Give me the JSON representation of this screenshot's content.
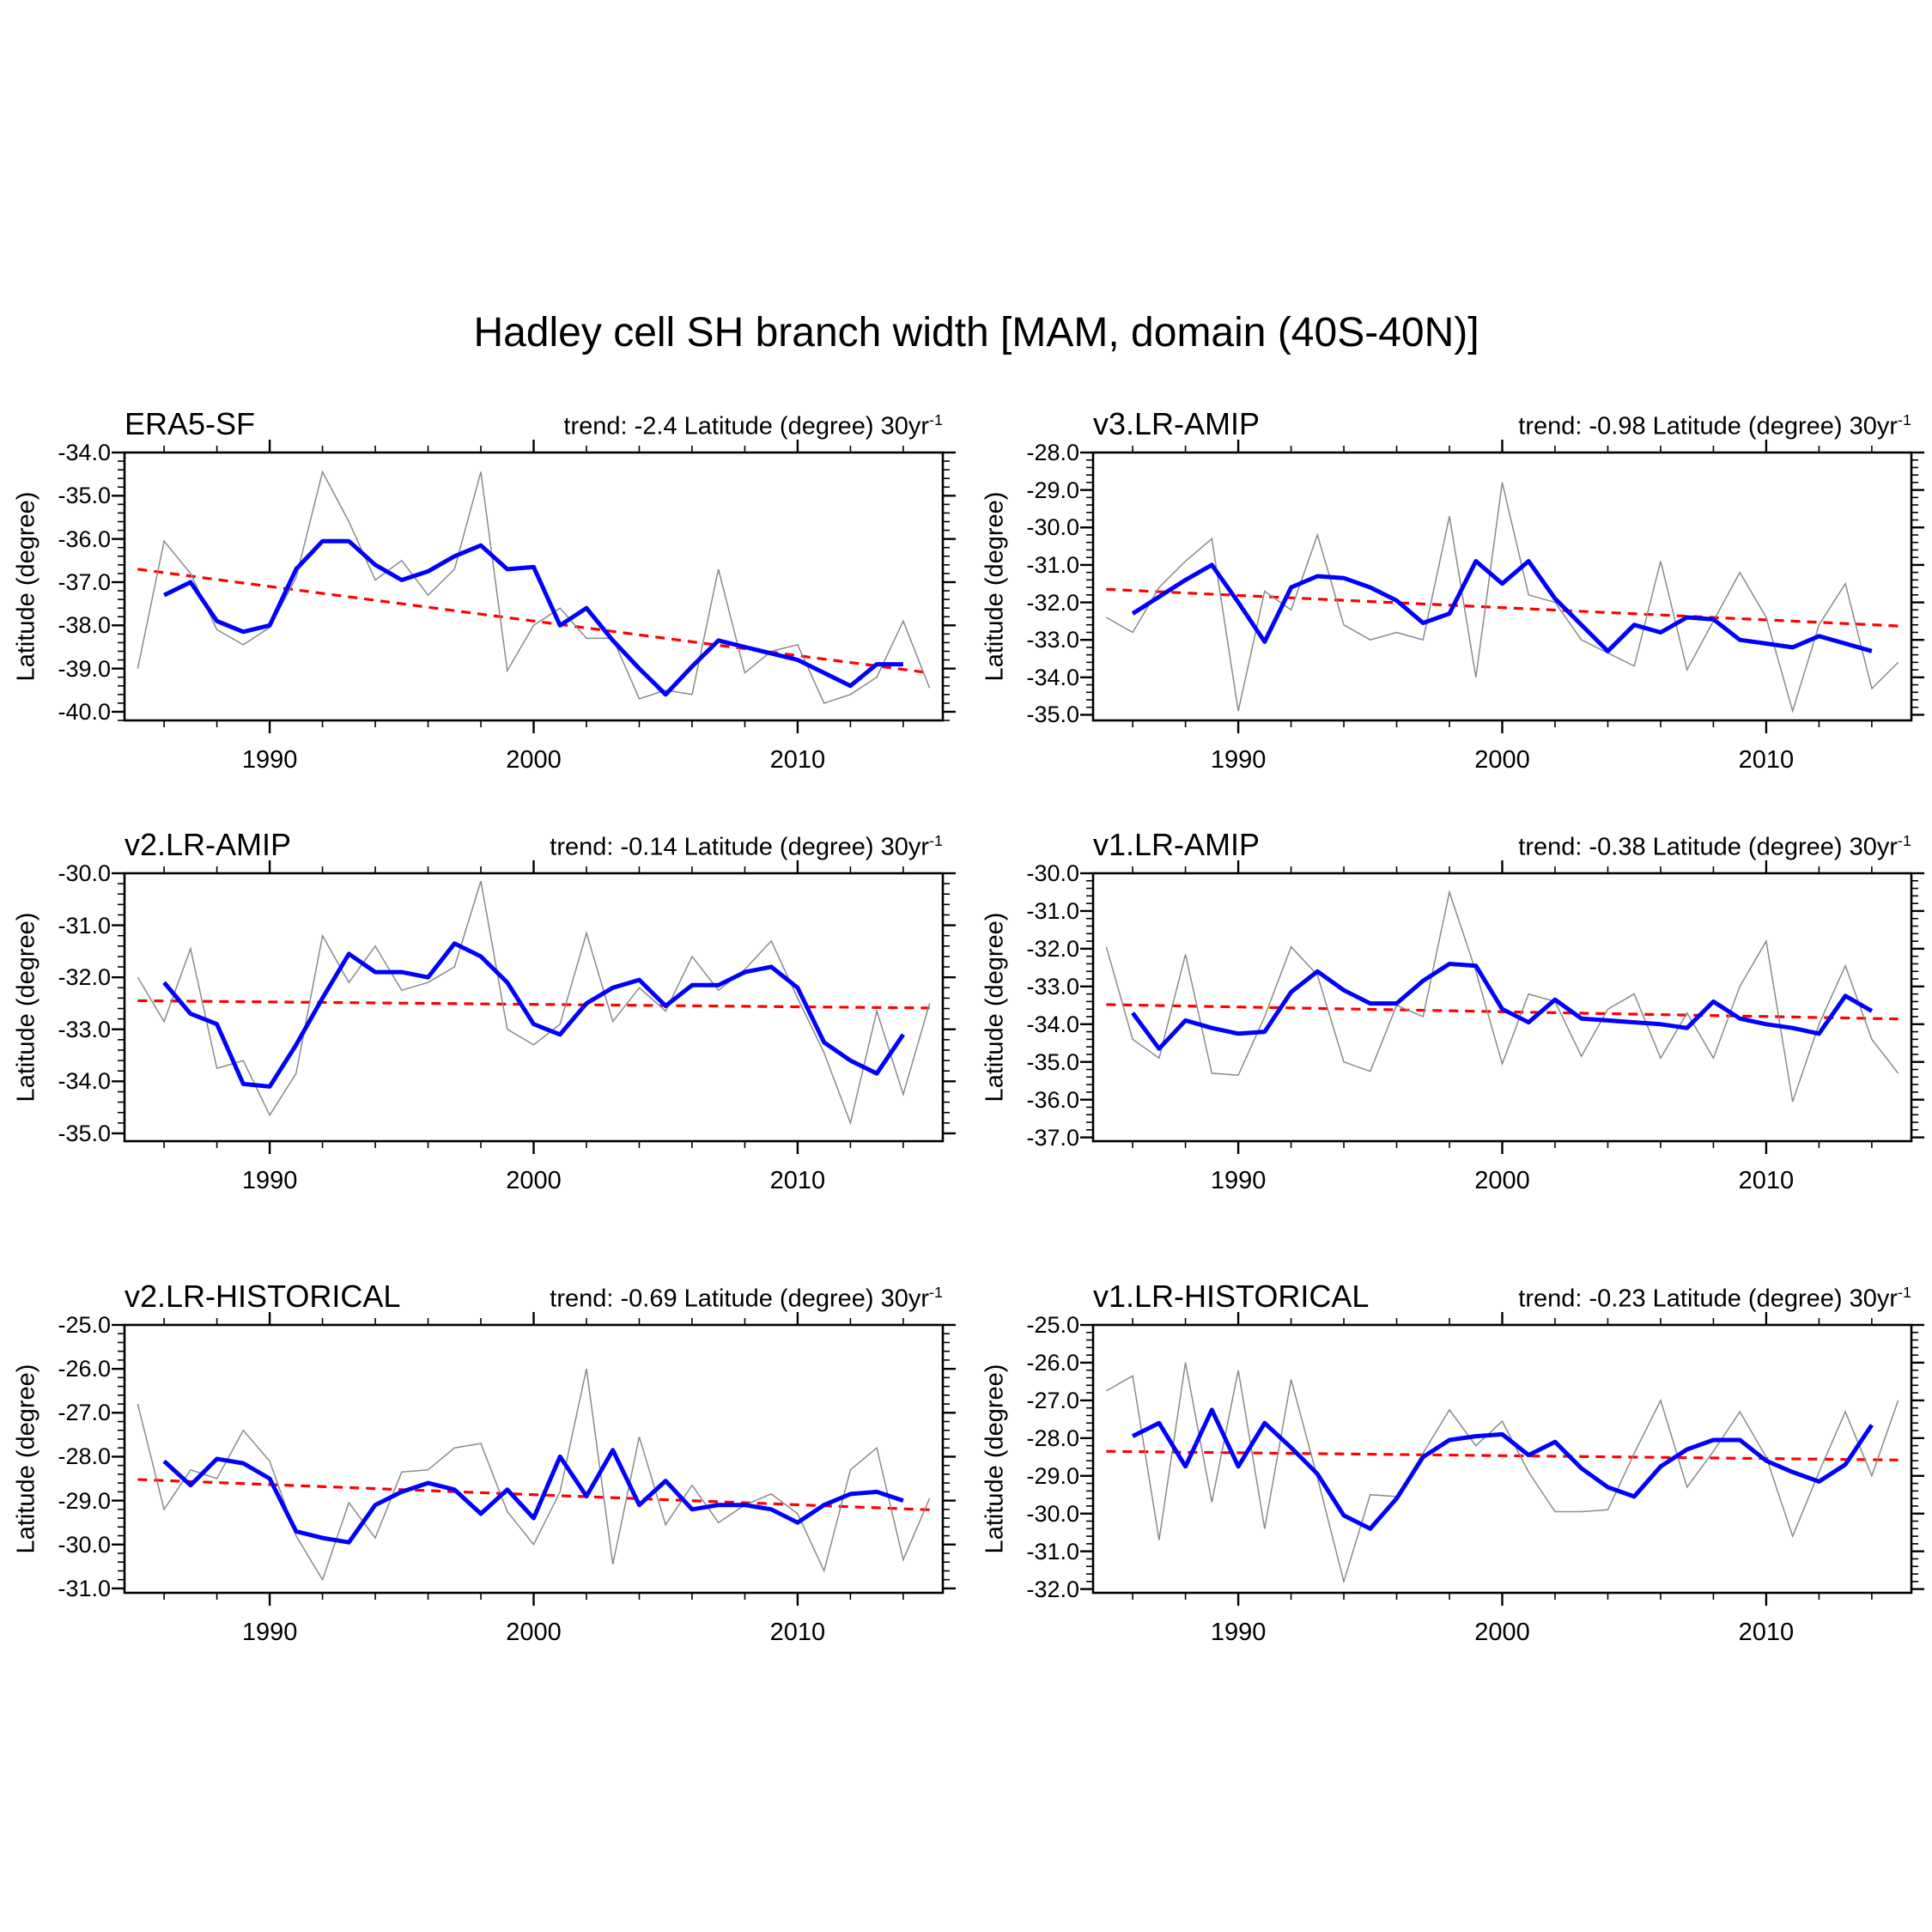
{
  "title": "Hadley cell SH branch width [MAM, domain (40S-40N)]",
  "ylabel": "Latitude (degree)",
  "colors": {
    "annual": "#8a8a8a",
    "smoothed": "#0000ff",
    "trend": "#ff0000",
    "frame": "#000000"
  },
  "layout": {
    "col_frame_x": [
      145,
      1273
    ],
    "row_frame_y": [
      527,
      1017,
      1543
    ],
    "frame_w": 953,
    "frame_h": 312
  },
  "x_axis": {
    "range": [
      1984.5,
      2015.5
    ],
    "major_ticks": [
      1990,
      2000,
      2010
    ],
    "minor_step_years": 2,
    "grid": false,
    "legend": "none"
  },
  "years_annual_start": 1985,
  "years_annual_end": 2015,
  "years_smoothed_start": 1986,
  "years_smoothed_end": 2014,
  "chart_data": [
    {
      "type": "line",
      "title": "ERA5-SF",
      "trend_text": "trend: -2.4 Latitude (degree) 30yr",
      "trend_sup": "-1",
      "ylabel": "Latitude (degree)",
      "ylim": [
        -34.0,
        -40.2
      ],
      "ytick_major_step": 1.0,
      "ytick_minor_step": 0.2,
      "ytick_labels": [
        -34.0,
        -35.0,
        -36.0,
        -37.0,
        -38.0,
        -39.0,
        -40.0
      ],
      "annual": [
        -39.0,
        -36.05,
        -36.8,
        -38.1,
        -38.45,
        -38.05,
        -36.9,
        -34.45,
        -35.6,
        -36.95,
        -36.5,
        -37.3,
        -36.7,
        -34.45,
        -39.05,
        -38.0,
        -37.6,
        -38.3,
        -38.3,
        -39.7,
        -39.5,
        -39.6,
        -36.7,
        -39.1,
        -38.6,
        -38.45,
        -39.8,
        -39.6,
        -39.2,
        -37.9,
        -39.45
      ],
      "smoothed": [
        -37.3,
        -37.0,
        -37.9,
        -38.15,
        -38.0,
        -36.7,
        -36.05,
        -36.05,
        -36.6,
        -36.95,
        -36.75,
        -36.4,
        -36.15,
        -36.7,
        -36.65,
        -38.0,
        -37.6,
        -38.35,
        -39.0,
        -39.6,
        -38.95,
        -38.35,
        -38.5,
        -38.65,
        -38.8,
        -39.1,
        -39.4,
        -38.9,
        -38.9
      ],
      "trend_line": [
        -36.7,
        -39.1
      ]
    },
    {
      "type": "line",
      "title": "v3.LR-AMIP",
      "trend_text": "trend: -0.98 Latitude (degree) 30yr",
      "trend_sup": "-1",
      "ylabel": "Latitude (degree)",
      "ylim": [
        -28.0,
        -35.15
      ],
      "ytick_major_step": 1.0,
      "ytick_minor_step": 0.2,
      "ytick_labels": [
        -28.0,
        -29.0,
        -30.0,
        -31.0,
        -32.0,
        -33.0,
        -34.0,
        -35.0
      ],
      "annual": [
        -32.4,
        -32.8,
        -31.6,
        -30.9,
        -30.3,
        -34.9,
        -31.7,
        -32.2,
        -30.2,
        -32.6,
        -33.0,
        -32.8,
        -33.0,
        -29.7,
        -34.0,
        -28.8,
        -31.8,
        -32.0,
        -33.0,
        -33.35,
        -33.7,
        -30.9,
        -33.8,
        -32.5,
        -31.2,
        -32.4,
        -34.9,
        -32.6,
        -31.5,
        -34.3,
        -33.6
      ],
      "smoothed": [
        -32.3,
        -31.85,
        -31.4,
        -31.0,
        -32.0,
        -33.05,
        -31.6,
        -31.3,
        -31.35,
        -31.6,
        -31.95,
        -32.55,
        -32.3,
        -30.9,
        -31.5,
        -30.9,
        -31.9,
        -32.6,
        -33.3,
        -32.6,
        -32.8,
        -32.4,
        -32.45,
        -33.0,
        -33.1,
        -33.2,
        -32.9,
        -33.1,
        -33.3
      ],
      "trend_line": [
        -31.65,
        -32.63
      ]
    },
    {
      "type": "line",
      "title": "v2.LR-AMIP",
      "trend_text": "trend: -0.14 Latitude (degree) 30yr",
      "trend_sup": "-1",
      "ylabel": "Latitude (degree)",
      "ylim": [
        -30.0,
        -35.15
      ],
      "ytick_major_step": 1.0,
      "ytick_minor_step": 0.2,
      "ytick_labels": [
        -30.0,
        -31.0,
        -32.0,
        -33.0,
        -34.0,
        -35.0
      ],
      "annual": [
        -32.0,
        -32.85,
        -31.45,
        -33.75,
        -33.6,
        -34.65,
        -33.85,
        -31.2,
        -32.1,
        -31.4,
        -32.25,
        -32.1,
        -31.8,
        -30.15,
        -33.0,
        -33.3,
        -32.9,
        -31.15,
        -32.85,
        -32.2,
        -32.65,
        -31.6,
        -32.25,
        -31.85,
        -31.3,
        -32.4,
        -33.45,
        -34.8,
        -32.65,
        -34.25,
        -32.5
      ],
      "smoothed": [
        -32.1,
        -32.7,
        -32.9,
        -34.05,
        -34.1,
        -33.3,
        -32.4,
        -31.55,
        -31.9,
        -31.9,
        -32.0,
        -31.35,
        -31.6,
        -32.1,
        -32.9,
        -33.1,
        -32.5,
        -32.2,
        -32.05,
        -32.55,
        -32.15,
        -32.15,
        -31.9,
        -31.8,
        -32.2,
        -33.25,
        -33.6,
        -33.85,
        -33.1
      ],
      "trend_line": [
        -32.45,
        -32.59
      ]
    },
    {
      "type": "line",
      "title": "v1.LR-AMIP",
      "trend_text": "trend: -0.38 Latitude (degree) 30yr",
      "trend_sup": "-1",
      "ylabel": "Latitude (degree)",
      "ylim": [
        -30.0,
        -37.1
      ],
      "ytick_major_step": 1.0,
      "ytick_minor_step": 0.2,
      "ytick_labels": [
        -30.0,
        -31.0,
        -32.0,
        -33.0,
        -34.0,
        -35.0,
        -36.0,
        -37.0
      ],
      "annual": [
        -31.95,
        -34.4,
        -34.9,
        -32.15,
        -35.3,
        -35.35,
        -33.8,
        -31.95,
        -32.7,
        -35.0,
        -35.25,
        -33.5,
        -33.8,
        -30.5,
        -32.6,
        -35.05,
        -33.2,
        -33.4,
        -34.85,
        -33.6,
        -33.2,
        -34.9,
        -33.7,
        -34.9,
        -33.0,
        -31.8,
        -36.05,
        -34.0,
        -32.45,
        -34.4,
        -35.3
      ],
      "smoothed": [
        -33.7,
        -34.65,
        -33.9,
        -34.1,
        -34.25,
        -34.2,
        -33.15,
        -32.6,
        -33.1,
        -33.45,
        -33.45,
        -32.85,
        -32.4,
        -32.45,
        -33.6,
        -33.95,
        -33.35,
        -33.85,
        -33.9,
        -33.95,
        -34.0,
        -34.1,
        -33.4,
        -33.85,
        -34.0,
        -34.1,
        -34.25,
        -33.25,
        -33.65
      ],
      "trend_line": [
        -33.48,
        -33.86
      ]
    },
    {
      "type": "line",
      "title": "v2.LR-HISTORICAL",
      "trend_text": "trend: -0.69 Latitude (degree) 30yr",
      "trend_sup": "-1",
      "ylabel": "Latitude (degree)",
      "ylim": [
        -25.0,
        -31.1
      ],
      "ytick_major_step": 1.0,
      "ytick_minor_step": 0.2,
      "ytick_labels": [
        -25.0,
        -26.0,
        -27.0,
        -28.0,
        -29.0,
        -30.0,
        -31.0
      ],
      "annual": [
        -26.8,
        -29.2,
        -28.3,
        -28.5,
        -27.4,
        -28.1,
        -29.8,
        -30.8,
        -29.05,
        -29.85,
        -28.35,
        -28.3,
        -27.8,
        -27.7,
        -29.25,
        -30.0,
        -28.8,
        -26.0,
        -30.45,
        -27.55,
        -29.55,
        -28.65,
        -29.5,
        -29.1,
        -28.85,
        -29.3,
        -30.6,
        -28.3,
        -27.8,
        -30.35,
        -28.95
      ],
      "smoothed": [
        -28.1,
        -28.65,
        -28.05,
        -28.15,
        -28.5,
        -29.7,
        -29.85,
        -29.95,
        -29.1,
        -28.8,
        -28.6,
        -28.75,
        -29.3,
        -28.75,
        -29.4,
        -28.0,
        -28.9,
        -27.85,
        -29.1,
        -28.55,
        -29.2,
        -29.1,
        -29.1,
        -29.2,
        -29.5,
        -29.1,
        -28.85,
        -28.8,
        -29.0
      ],
      "trend_line": [
        -28.52,
        -29.21
      ]
    },
    {
      "type": "line",
      "title": "v1.LR-HISTORICAL",
      "trend_text": "trend: -0.23 Latitude (degree) 30yr",
      "trend_sup": "-1",
      "ylabel": "Latitude (degree)",
      "ylim": [
        -25.0,
        -32.1
      ],
      "ytick_major_step": 1.0,
      "ytick_minor_step": 0.2,
      "ytick_labels": [
        -25.0,
        -26.0,
        -27.0,
        -28.0,
        -29.0,
        -30.0,
        -31.0,
        -32.0
      ],
      "annual": [
        -26.75,
        -26.35,
        -30.7,
        -26.0,
        -29.7,
        -26.2,
        -30.4,
        -26.45,
        -29.05,
        -31.8,
        -29.5,
        -29.55,
        -28.4,
        -27.25,
        -28.2,
        -27.55,
        -28.9,
        -29.95,
        -29.95,
        -29.9,
        -28.4,
        -27.0,
        -29.3,
        -28.35,
        -27.3,
        -28.5,
        -30.6,
        -28.9,
        -27.3,
        -29.0,
        -27.0
      ],
      "smoothed": [
        -27.95,
        -27.6,
        -28.75,
        -27.25,
        -28.75,
        -27.6,
        -28.25,
        -28.95,
        -30.05,
        -30.4,
        -29.6,
        -28.5,
        -28.05,
        -27.95,
        -27.9,
        -28.45,
        -28.1,
        -28.8,
        -29.3,
        -29.55,
        -28.75,
        -28.3,
        -28.05,
        -28.05,
        -28.6,
        -28.9,
        -29.15,
        -28.7,
        -27.65
      ],
      "trend_line": [
        -28.35,
        -28.58
      ]
    }
  ]
}
